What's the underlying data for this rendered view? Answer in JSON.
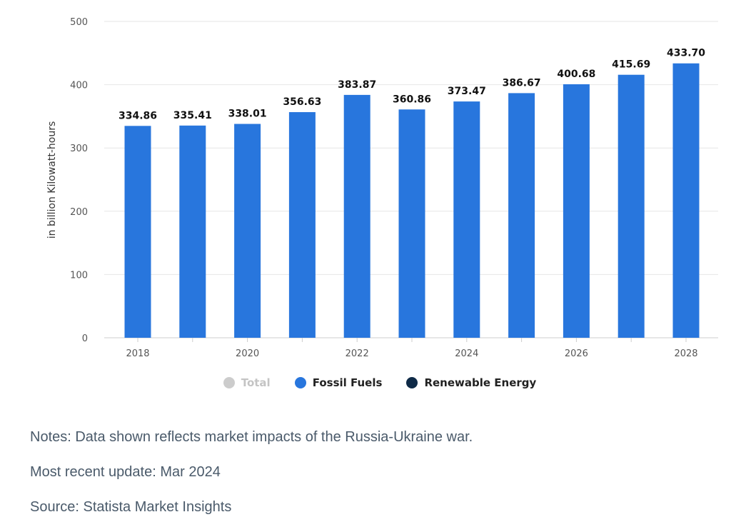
{
  "chart_data": {
    "type": "bar",
    "categories": [
      "2018",
      "2019",
      "2020",
      "2021",
      "2022",
      "2023",
      "2024",
      "2025",
      "2026",
      "2027",
      "2028"
    ],
    "x_tick_labels": [
      "2018",
      "",
      "2020",
      "",
      "2022",
      "",
      "2024",
      "",
      "2026",
      "",
      "2028"
    ],
    "series": [
      {
        "name": "Fossil Fuels",
        "values": [
          334.86,
          335.41,
          338.01,
          356.63,
          383.87,
          360.86,
          373.47,
          386.67,
          400.68,
          415.69,
          433.7
        ],
        "value_labels": [
          "334.86",
          "335.41",
          "338.01",
          "356.63",
          "383.87",
          "360.86",
          "373.47",
          "386.67",
          "400.68",
          "415.69",
          "433.70"
        ]
      }
    ],
    "ylabel": "in billion Kilowatt-hours",
    "xlabel": "",
    "ylim": [
      0,
      500
    ],
    "y_ticks": [
      0,
      100,
      200,
      300,
      400,
      500
    ],
    "grid": true,
    "legend_position": "bottom-center"
  },
  "legend": {
    "items": [
      {
        "label": "Total",
        "color": "#cccccc",
        "active": false
      },
      {
        "label": "Fossil Fuels",
        "color": "#2876dd",
        "active": true
      },
      {
        "label": "Renewable Energy",
        "color": "#0e2a47",
        "active": true
      }
    ]
  },
  "colors": {
    "bar": "#2876dd",
    "grid": "#e6e6e6",
    "axis": "#cccccc"
  },
  "notes": {
    "note": "Notes: Data shown reflects market impacts of the Russia-Ukraine war.",
    "update": "Most recent update: Mar 2024",
    "source": "Source: Statista Market Insights"
  }
}
